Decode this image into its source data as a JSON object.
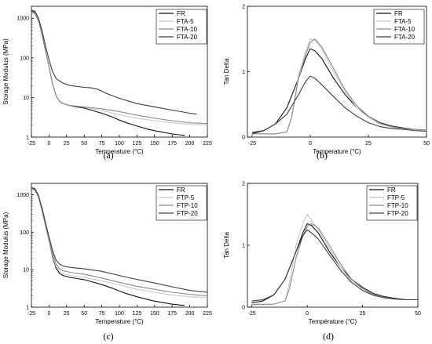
{
  "chart_data": [
    {
      "id": "a",
      "type": "line",
      "caption": "(a)",
      "xlabel": "Temperature (°C)",
      "ylabel": "Storage Modulus (MPa)",
      "xlim": [
        -25,
        225
      ],
      "ylim": [
        1,
        2000
      ],
      "yscale": "log",
      "xticks": [
        -25,
        0,
        25,
        50,
        75,
        100,
        125,
        150,
        175,
        200,
        225
      ],
      "yticks": [
        1,
        10,
        100,
        1000
      ],
      "grid": false,
      "legend_position": "top-right",
      "series": [
        {
          "name": "FR",
          "color": "#111111",
          "x": [
            -25,
            -20,
            -15,
            -10,
            -5,
            0,
            5,
            10,
            15,
            20,
            30,
            40,
            50,
            60,
            75,
            90,
            100,
            110,
            125,
            140,
            150,
            160,
            175,
            190,
            193
          ],
          "y": [
            1500,
            1400,
            900,
            400,
            150,
            60,
            22,
            11,
            8,
            7,
            6.2,
            5.8,
            5.4,
            4.8,
            4,
            3.2,
            2.7,
            2.3,
            1.9,
            1.6,
            1.45,
            1.35,
            1.2,
            1.12,
            1.1
          ]
        },
        {
          "name": "FTA-5",
          "color": "#c8c8c8",
          "x": [
            -25,
            -20,
            -15,
            -10,
            -5,
            0,
            5,
            10,
            15,
            20,
            30,
            40,
            50,
            75,
            100,
            125,
            150,
            175,
            200,
            225
          ],
          "y": [
            1450,
            1350,
            880,
            390,
            150,
            58,
            22,
            11,
            8,
            7,
            6.3,
            6,
            5.7,
            4.7,
            3.7,
            3,
            2.6,
            2.3,
            2.1,
            2
          ]
        },
        {
          "name": "FTA-10",
          "color": "#8a8a8a",
          "x": [
            -25,
            -20,
            -15,
            -10,
            -5,
            0,
            5,
            10,
            15,
            20,
            30,
            40,
            50,
            75,
            100,
            125,
            150,
            175,
            200,
            225
          ],
          "y": [
            1400,
            1300,
            860,
            380,
            150,
            60,
            22,
            11,
            8,
            7,
            6.3,
            6,
            5.8,
            5.2,
            4.4,
            3.6,
            3,
            2.6,
            2.3,
            2.2
          ]
        },
        {
          "name": "FTA-20",
          "color": "#3c3c3c",
          "x": [
            -25,
            -20,
            -15,
            -10,
            -5,
            0,
            5,
            10,
            20,
            30,
            40,
            50,
            60,
            70,
            80,
            100,
            125,
            150,
            175,
            200,
            210
          ],
          "y": [
            1600,
            1500,
            1000,
            500,
            200,
            90,
            45,
            30,
            23,
            20,
            19,
            18,
            17.5,
            16,
            13,
            9.5,
            7,
            5.8,
            4.8,
            4,
            3.8
          ]
        }
      ]
    },
    {
      "id": "b",
      "type": "line",
      "caption": "(b)",
      "xlabel": "Temperature (°C)",
      "ylabel": "Tan Delta",
      "xlim": [
        -27,
        50
      ],
      "ylim": [
        0,
        2
      ],
      "xticks": [
        -25,
        0,
        25,
        50
      ],
      "yticks": [
        0,
        1,
        2
      ],
      "grid": false,
      "legend_position": "top-right",
      "series": [
        {
          "name": "FR",
          "color": "#111111",
          "x": [
            -25,
            -20,
            -15,
            -10,
            -5,
            -2,
            0,
            2,
            5,
            10,
            15,
            20,
            25,
            30,
            35,
            40,
            45,
            50
          ],
          "y": [
            0.07,
            0.1,
            0.2,
            0.45,
            0.9,
            1.2,
            1.35,
            1.32,
            1.2,
            0.9,
            0.65,
            0.45,
            0.32,
            0.22,
            0.17,
            0.14,
            0.12,
            0.1
          ]
        },
        {
          "name": "FTA-5",
          "color": "#c8c8c8",
          "x": [
            -25,
            -15,
            -10,
            -8,
            -5,
            -2,
            0,
            2,
            5,
            10,
            15,
            20,
            25,
            30,
            35,
            40,
            45,
            50
          ],
          "y": [
            0.05,
            0.05,
            0.08,
            0.3,
            0.95,
            1.3,
            1.5,
            1.48,
            1.35,
            1,
            0.7,
            0.45,
            0.3,
            0.2,
            0.15,
            0.13,
            0.12,
            0.1
          ]
        },
        {
          "name": "FTA-10",
          "color": "#8a8a8a",
          "x": [
            -25,
            -15,
            -10,
            -8,
            -5,
            -2,
            0,
            2,
            5,
            10,
            15,
            20,
            25,
            30,
            35,
            40,
            45,
            50
          ],
          "y": [
            0.05,
            0.05,
            0.08,
            0.3,
            0.9,
            1.25,
            1.45,
            1.5,
            1.38,
            1.05,
            0.72,
            0.48,
            0.32,
            0.21,
            0.16,
            0.13,
            0.12,
            0.11
          ]
        },
        {
          "name": "FTA-20",
          "color": "#3c3c3c",
          "x": [
            -25,
            -20,
            -15,
            -10,
            -5,
            -2,
            0,
            2,
            5,
            10,
            15,
            20,
            25,
            30,
            35,
            40,
            45,
            50
          ],
          "y": [
            0.05,
            0.1,
            0.2,
            0.35,
            0.65,
            0.85,
            0.93,
            0.9,
            0.8,
            0.62,
            0.45,
            0.32,
            0.22,
            0.16,
            0.13,
            0.12,
            0.1,
            0.09
          ]
        }
      ]
    },
    {
      "id": "c",
      "type": "line",
      "caption": "(c)",
      "xlabel": "Temperature (°C)",
      "ylabel": "Storage Modulus (MPa)",
      "xlim": [
        -25,
        225
      ],
      "ylim": [
        1,
        2000
      ],
      "yscale": "log",
      "xticks": [
        -25,
        0,
        25,
        50,
        75,
        100,
        125,
        150,
        175,
        200,
        225
      ],
      "yticks": [
        1,
        10,
        100,
        1000
      ],
      "grid": false,
      "legend_position": "top-right",
      "series": [
        {
          "name": "FR",
          "color": "#111111",
          "x": [
            -25,
            -20,
            -15,
            -10,
            -5,
            0,
            5,
            10,
            15,
            20,
            30,
            40,
            50,
            60,
            75,
            90,
            100,
            110,
            125,
            140,
            150,
            160,
            175,
            190,
            193
          ],
          "y": [
            1500,
            1400,
            900,
            400,
            150,
            60,
            22,
            11,
            8,
            7,
            6.2,
            5.8,
            5.4,
            4.8,
            4,
            3.2,
            2.7,
            2.3,
            1.9,
            1.6,
            1.45,
            1.35,
            1.2,
            1.12,
            1.1
          ]
        },
        {
          "name": "FTP-5",
          "color": "#c8c8c8",
          "x": [
            -25,
            -20,
            -15,
            -10,
            -5,
            0,
            5,
            10,
            15,
            20,
            30,
            40,
            50,
            75,
            100,
            125,
            150,
            175,
            200,
            225
          ],
          "y": [
            1450,
            1350,
            880,
            390,
            150,
            60,
            24,
            12,
            9,
            7.8,
            7,
            6.6,
            6.2,
            5,
            3.9,
            3,
            2.5,
            2.1,
            1.9,
            1.8
          ]
        },
        {
          "name": "FTP-10",
          "color": "#8a8a8a",
          "x": [
            -25,
            -20,
            -15,
            -10,
            -5,
            0,
            5,
            10,
            15,
            20,
            30,
            40,
            50,
            75,
            100,
            125,
            150,
            175,
            200,
            225
          ],
          "y": [
            1400,
            1300,
            860,
            380,
            155,
            65,
            27,
            14,
            10.5,
            9.3,
            8.5,
            8,
            7.5,
            6,
            4.6,
            3.6,
            3,
            2.5,
            2.2,
            2
          ]
        },
        {
          "name": "FTP-20",
          "color": "#3c3c3c",
          "x": [
            -25,
            -20,
            -15,
            -10,
            -5,
            0,
            5,
            10,
            15,
            20,
            30,
            40,
            50,
            75,
            100,
            125,
            150,
            175,
            200,
            225
          ],
          "y": [
            1550,
            1450,
            950,
            450,
            180,
            75,
            32,
            18,
            14,
            12.5,
            11.5,
            11,
            10.5,
            9,
            7,
            5.5,
            4.4,
            3.5,
            2.8,
            2.5
          ]
        }
      ]
    },
    {
      "id": "d",
      "type": "line",
      "caption": "(d)",
      "xlabel": "Température (°C)",
      "ylabel": "Tan Delta",
      "xlim": [
        -27,
        50
      ],
      "ylim": [
        0,
        2
      ],
      "xticks": [
        -25,
        0,
        25,
        50
      ],
      "yticks": [
        0,
        1,
        2
      ],
      "grid": false,
      "legend_position": "top-right",
      "series": [
        {
          "name": "FR",
          "color": "#111111",
          "x": [
            -25,
            -20,
            -15,
            -10,
            -5,
            -2,
            0,
            2,
            5,
            10,
            15,
            20,
            25,
            30,
            35,
            40,
            45,
            50
          ],
          "y": [
            0.07,
            0.1,
            0.2,
            0.45,
            0.9,
            1.2,
            1.35,
            1.32,
            1.2,
            0.9,
            0.65,
            0.45,
            0.32,
            0.22,
            0.17,
            0.14,
            0.12,
            0.12
          ]
        },
        {
          "name": "FTP-5",
          "color": "#c8c8c8",
          "x": [
            -25,
            -15,
            -10,
            -8,
            -5,
            -2,
            0,
            2,
            5,
            10,
            15,
            20,
            25,
            30,
            35,
            40,
            45,
            50
          ],
          "y": [
            0.05,
            0.05,
            0.1,
            0.4,
            1,
            1.35,
            1.5,
            1.4,
            1.25,
            0.95,
            0.65,
            0.42,
            0.3,
            0.2,
            0.15,
            0.13,
            0.12,
            0.12
          ]
        },
        {
          "name": "FTP-10",
          "color": "#8a8a8a",
          "x": [
            -25,
            -15,
            -10,
            -8,
            -5,
            -2,
            0,
            2,
            5,
            10,
            15,
            20,
            25,
            30,
            35,
            40,
            45,
            50
          ],
          "y": [
            0.04,
            0.05,
            0.1,
            0.3,
            0.8,
            1.15,
            1.3,
            1.35,
            1.28,
            1,
            0.7,
            0.45,
            0.3,
            0.2,
            0.16,
            0.13,
            0.12,
            0.12
          ]
        },
        {
          "name": "FTP-20",
          "color": "#3c3c3c",
          "x": [
            -25,
            -20,
            -15,
            -10,
            -5,
            -2,
            0,
            2,
            5,
            10,
            15,
            20,
            25,
            30,
            35,
            40,
            45,
            50
          ],
          "y": [
            0.1,
            0.12,
            0.2,
            0.45,
            0.9,
            1.15,
            1.25,
            1.2,
            1.1,
            0.85,
            0.6,
            0.4,
            0.27,
            0.19,
            0.15,
            0.13,
            0.12,
            0.12
          ]
        }
      ]
    }
  ]
}
